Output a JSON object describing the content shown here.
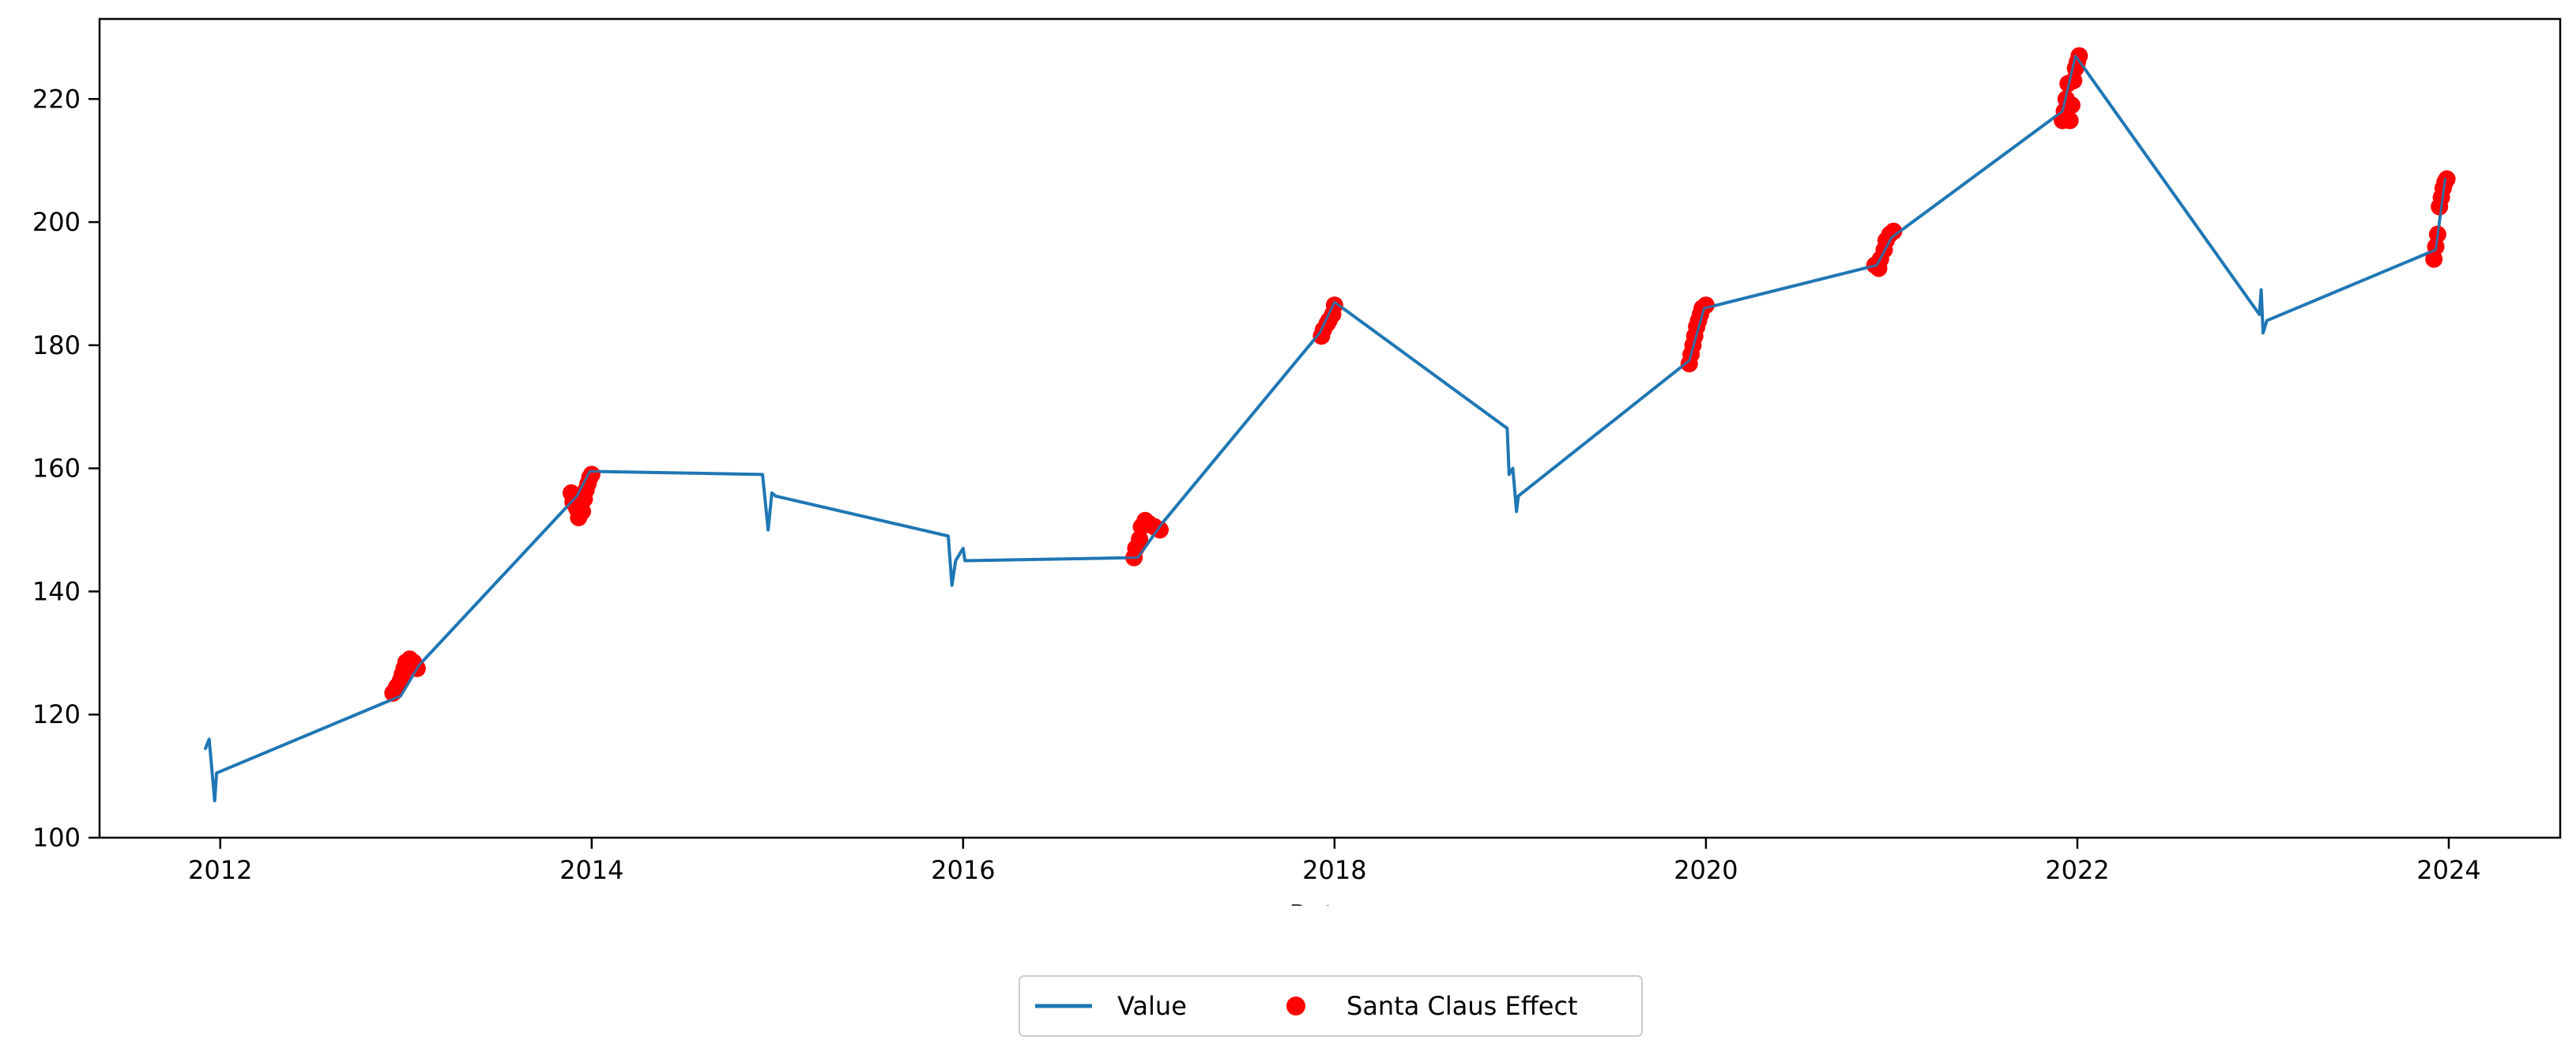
{
  "chart_data": {
    "type": "line",
    "title": "",
    "xlabel": "Date",
    "ylabel": "",
    "xlim": [
      2011.35,
      2024.6
    ],
    "ylim": [
      100,
      233
    ],
    "grid": false,
    "legend_placement": "bottom-center (outside plot)",
    "x_ticks": [
      {
        "value": 2012,
        "label": "2012"
      },
      {
        "value": 2014,
        "label": "2014"
      },
      {
        "value": 2016,
        "label": "2016"
      },
      {
        "value": 2018,
        "label": "2018"
      },
      {
        "value": 2020,
        "label": "2020"
      },
      {
        "value": 2022,
        "label": "2022"
      },
      {
        "value": 2024,
        "label": "2024"
      }
    ],
    "y_ticks": [
      {
        "value": 100,
        "label": "100"
      },
      {
        "value": 120,
        "label": "120"
      },
      {
        "value": 140,
        "label": "140"
      },
      {
        "value": 160,
        "label": "160"
      },
      {
        "value": 180,
        "label": "180"
      },
      {
        "value": 200,
        "label": "200"
      },
      {
        "value": 220,
        "label": "220"
      }
    ],
    "series": [
      {
        "name": "Value",
        "kind": "line",
        "color": "#1f77b4",
        "points": [
          [
            2011.92,
            114.5
          ],
          [
            2011.94,
            116.0
          ],
          [
            2011.955,
            111.0
          ],
          [
            2011.97,
            106.0
          ],
          [
            2011.98,
            110.5
          ],
          [
            2012.97,
            123.0
          ],
          [
            2013.07,
            128.0
          ],
          [
            2013.92,
            155.5
          ],
          [
            2013.99,
            159.5
          ],
          [
            2014.92,
            159.0
          ],
          [
            2014.95,
            150.0
          ],
          [
            2014.97,
            156.0
          ],
          [
            2014.99,
            155.5
          ],
          [
            2015.92,
            149.0
          ],
          [
            2015.94,
            141.0
          ],
          [
            2015.96,
            145.0
          ],
          [
            2016.0,
            147.0
          ],
          [
            2016.01,
            145.0
          ],
          [
            2016.94,
            145.5
          ],
          [
            2017.07,
            151.0
          ],
          [
            2017.92,
            182.0
          ],
          [
            2018.0,
            187.0
          ],
          [
            2018.93,
            166.5
          ],
          [
            2018.94,
            159.0
          ],
          [
            2018.96,
            160.0
          ],
          [
            2018.98,
            153.0
          ],
          [
            2018.99,
            155.5
          ],
          [
            2019.91,
            177.5
          ],
          [
            2019.99,
            186.0
          ],
          [
            2020.92,
            193.0
          ],
          [
            2021.0,
            197.5
          ],
          [
            2021.92,
            218.0
          ],
          [
            2021.99,
            227.0
          ],
          [
            2022.98,
            185.0
          ],
          [
            2022.99,
            189.0
          ],
          [
            2023.0,
            182.0
          ],
          [
            2023.02,
            184.0
          ],
          [
            2023.93,
            195.5
          ],
          [
            2023.98,
            207.0
          ]
        ]
      },
      {
        "name": "Santa Claus Effect",
        "kind": "scatter",
        "color": "#ff0000",
        "points": [
          [
            2012.93,
            123.5
          ],
          [
            2012.95,
            124.5
          ],
          [
            2012.97,
            125.5
          ],
          [
            2012.98,
            126.5
          ],
          [
            2012.99,
            127.5
          ],
          [
            2013.0,
            128.5
          ],
          [
            2013.02,
            129.0
          ],
          [
            2013.04,
            128.5
          ],
          [
            2013.06,
            127.5
          ],
          [
            2013.89,
            156.0
          ],
          [
            2013.9,
            154.5
          ],
          [
            2013.92,
            153.5
          ],
          [
            2013.93,
            152.0
          ],
          [
            2013.95,
            153.0
          ],
          [
            2013.96,
            155.0
          ],
          [
            2013.97,
            156.5
          ],
          [
            2013.98,
            157.5
          ],
          [
            2013.99,
            158.5
          ],
          [
            2014.0,
            159.0
          ],
          [
            2016.92,
            145.5
          ],
          [
            2016.93,
            147.0
          ],
          [
            2016.95,
            148.5
          ],
          [
            2016.96,
            150.5
          ],
          [
            2016.98,
            151.5
          ],
          [
            2017.0,
            151.0
          ],
          [
            2017.03,
            150.5
          ],
          [
            2017.06,
            150.0
          ],
          [
            2017.93,
            181.5
          ],
          [
            2017.94,
            182.5
          ],
          [
            2017.96,
            183.5
          ],
          [
            2017.97,
            184.0
          ],
          [
            2017.99,
            185.0
          ],
          [
            2018.0,
            186.5
          ],
          [
            2019.91,
            177.0
          ],
          [
            2019.92,
            178.5
          ],
          [
            2019.93,
            180.0
          ],
          [
            2019.94,
            181.5
          ],
          [
            2019.95,
            183.0
          ],
          [
            2019.96,
            184.0
          ],
          [
            2019.97,
            185.0
          ],
          [
            2019.98,
            186.0
          ],
          [
            2020.0,
            186.5
          ],
          [
            2020.91,
            193.0
          ],
          [
            2020.93,
            192.5
          ],
          [
            2020.94,
            194.0
          ],
          [
            2020.96,
            195.5
          ],
          [
            2020.97,
            197.0
          ],
          [
            2020.99,
            198.0
          ],
          [
            2021.01,
            198.5
          ],
          [
            2021.92,
            216.5
          ],
          [
            2021.93,
            218.0
          ],
          [
            2021.94,
            220.0
          ],
          [
            2021.95,
            222.5
          ],
          [
            2021.96,
            216.5
          ],
          [
            2021.97,
            219.0
          ],
          [
            2021.98,
            223.0
          ],
          [
            2021.99,
            225.0
          ],
          [
            2022.0,
            226.0
          ],
          [
            2022.01,
            227.0
          ],
          [
            2023.92,
            194.0
          ],
          [
            2023.93,
            196.0
          ],
          [
            2023.94,
            198.0
          ],
          [
            2023.95,
            202.5
          ],
          [
            2023.96,
            204.0
          ],
          [
            2023.97,
            205.5
          ],
          [
            2023.98,
            206.5
          ],
          [
            2023.99,
            207.0
          ]
        ]
      }
    ]
  },
  "legend": {
    "entries": [
      {
        "label": "Value",
        "marker": "line",
        "color": "#1f77b4"
      },
      {
        "label": "Santa Claus Effect",
        "marker": "dot",
        "color": "#ff0000"
      }
    ]
  }
}
